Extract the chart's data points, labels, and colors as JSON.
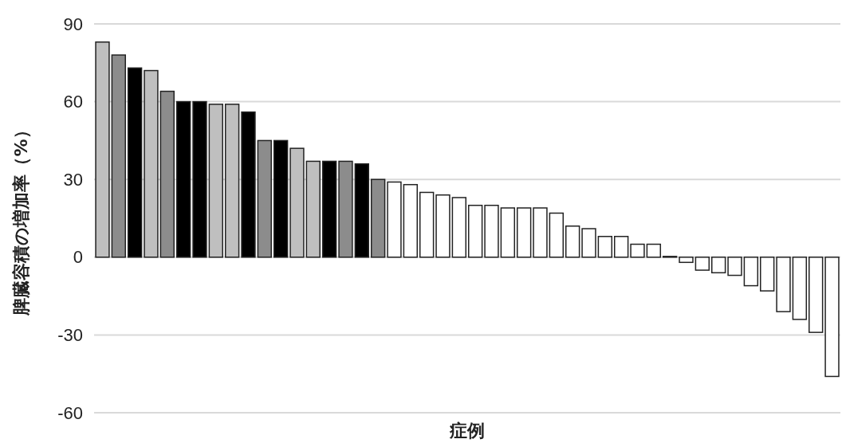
{
  "chart_data": {
    "type": "bar",
    "xlabel": "症例",
    "ylabel": "脾臓容積の増加率（%）",
    "categories": [
      null,
      null,
      null,
      null,
      null,
      null,
      null,
      null,
      null,
      null,
      null,
      null,
      null,
      null,
      null,
      null,
      null,
      null,
      null,
      null,
      null,
      null,
      null,
      null,
      null,
      null,
      null,
      null,
      null,
      null,
      null,
      null,
      null,
      null,
      null,
      null,
      null,
      null,
      null,
      null,
      null,
      null,
      null,
      null,
      null,
      null
    ],
    "values": [
      83,
      78,
      73,
      72,
      64,
      60,
      60,
      59,
      59,
      56,
      45,
      45,
      42,
      37,
      37,
      37,
      36,
      30,
      29,
      28,
      25,
      24,
      23,
      20,
      20,
      19,
      19,
      19,
      17,
      12,
      11,
      8,
      8,
      5,
      5,
      0.3,
      -2,
      -5,
      -6,
      -7,
      -11,
      -13,
      -21,
      -24,
      -29,
      -46
    ],
    "colors": [
      "#bfbfbf",
      "#8c8c8c",
      "#000000",
      "#bfbfbf",
      "#8c8c8c",
      "#000000",
      "#000000",
      "#bfbfbf",
      "#bfbfbf",
      "#000000",
      "#8c8c8c",
      "#000000",
      "#bfbfbf",
      "#bfbfbf",
      "#000000",
      "#8c8c8c",
      "#000000",
      "#8c8c8c",
      "#ffffff",
      "#ffffff",
      "#ffffff",
      "#ffffff",
      "#ffffff",
      "#ffffff",
      "#ffffff",
      "#ffffff",
      "#ffffff",
      "#ffffff",
      "#ffffff",
      "#ffffff",
      "#ffffff",
      "#ffffff",
      "#ffffff",
      "#ffffff",
      "#ffffff",
      "#ffffff",
      "#ffffff",
      "#ffffff",
      "#ffffff",
      "#ffffff",
      "#ffffff",
      "#ffffff",
      "#ffffff",
      "#ffffff",
      "#ffffff",
      "#ffffff"
    ],
    "ylim": [
      -60,
      90
    ],
    "yticks": [
      90,
      60,
      30,
      0,
      -30,
      -60
    ],
    "grid": "y"
  }
}
